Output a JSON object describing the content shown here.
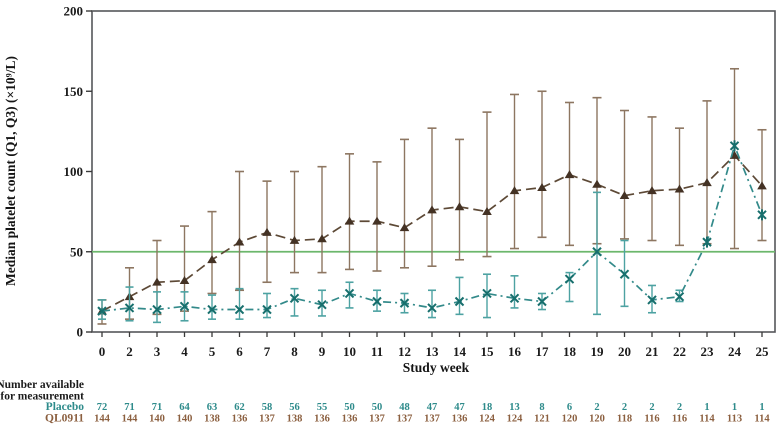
{
  "chart_data": {
    "type": "line",
    "title": "",
    "xlabel": "Study week",
    "ylabel": "Median platelet count (Q1, Q3) (×10⁹/L)",
    "x": [
      0,
      2,
      3,
      4,
      5,
      6,
      7,
      8,
      9,
      10,
      11,
      12,
      13,
      14,
      15,
      16,
      17,
      18,
      19,
      20,
      21,
      22,
      23,
      24,
      25
    ],
    "ylim": [
      0,
      200
    ],
    "yticks": [
      0,
      50,
      100,
      150,
      200
    ],
    "grid": "off",
    "legend": "none",
    "error_bars": "Q1-Q3 whiskers with caps",
    "reference_line": {
      "y": 50,
      "color": "#6cb76c"
    },
    "series": [
      {
        "name": "QL0911",
        "marker": "triangle",
        "line_style": "dashed",
        "dash": "10 5",
        "cap_half": 4.5,
        "color_line": "#5d4936",
        "color_marker": "#443224",
        "color_error": "#8d7661",
        "median": [
          13,
          22,
          31,
          32,
          45,
          56,
          62,
          57,
          58,
          69,
          69,
          65,
          76,
          78,
          75,
          88,
          90,
          98,
          92,
          85,
          88,
          89,
          93,
          110,
          91
        ],
        "q1": [
          5,
          8,
          11,
          13,
          24,
          26,
          31,
          37,
          37,
          39,
          38,
          40,
          41,
          45,
          47,
          52,
          59,
          54,
          55,
          58,
          57,
          54,
          55,
          52,
          57
        ],
        "q3": [
          20,
          40,
          57,
          66,
          75,
          100,
          94,
          100,
          103,
          111,
          106,
          120,
          127,
          120,
          137,
          148,
          150,
          143,
          146,
          138,
          134,
          127,
          144,
          164,
          126
        ]
      },
      {
        "name": "Placebo",
        "marker": "x",
        "line_style": "dash-dot",
        "dash": "8 4 2 4",
        "cap_half": 4,
        "color_line": "#338a8a",
        "color_marker": "#176f6d",
        "color_error": "#4da2a2",
        "star_weeks": [
          23,
          24,
          25
        ],
        "median": [
          13,
          15,
          14,
          16,
          14,
          14,
          14,
          21,
          17,
          24,
          19,
          18,
          15,
          19,
          24,
          21,
          19,
          33,
          50,
          36,
          20,
          22,
          56,
          116,
          73
        ],
        "q1": [
          8,
          7,
          6,
          7,
          8,
          8,
          9,
          10,
          10,
          15,
          13,
          12,
          9,
          11,
          9,
          15,
          14,
          19,
          11,
          16,
          12,
          19,
          56,
          116,
          73
        ],
        "q3": [
          20,
          28,
          25,
          25,
          23,
          27,
          24,
          27,
          26,
          31,
          26,
          24,
          26,
          34,
          36,
          35,
          24,
          37,
          87,
          57,
          29,
          26,
          56,
          116,
          73
        ]
      }
    ],
    "counts_table": {
      "header_line1": "Number available",
      "header_line2": "for measurement",
      "rows": [
        {
          "label": "Placebo",
          "color": "#2e8b8b",
          "values": [
            72,
            71,
            71,
            64,
            63,
            62,
            58,
            56,
            55,
            50,
            50,
            48,
            47,
            47,
            18,
            13,
            8,
            6,
            2,
            2,
            2,
            2,
            1,
            1,
            1
          ]
        },
        {
          "label": "QL0911",
          "color": "#8b5f3f",
          "values": [
            144,
            144,
            140,
            140,
            138,
            136,
            137,
            138,
            136,
            136,
            137,
            137,
            137,
            136,
            124,
            124,
            121,
            120,
            120,
            118,
            116,
            116,
            114,
            113,
            114
          ]
        }
      ]
    }
  }
}
